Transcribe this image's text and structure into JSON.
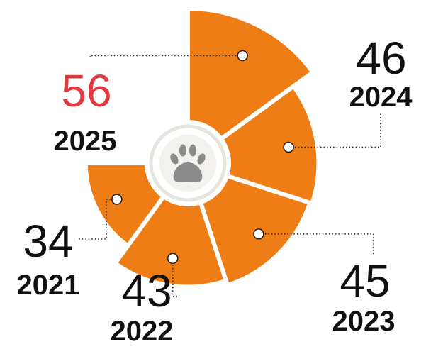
{
  "chart_data": {
    "type": "rose",
    "categories": [
      "2025",
      "2024",
      "2023",
      "2022",
      "2021"
    ],
    "values": [
      56,
      46,
      45,
      43,
      34
    ],
    "color": "#ef7d16",
    "highlight_color": "#e0393e"
  }
}
